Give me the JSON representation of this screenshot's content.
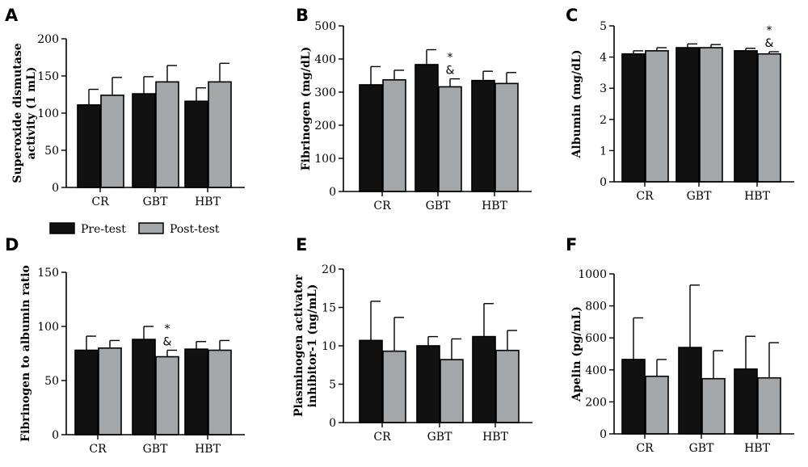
{
  "legend": {
    "entries": [
      "Pre-test",
      "Post-test"
    ]
  },
  "colors": {
    "pre": "#111111",
    "post": "#a3a7aa",
    "stroke": "#000000"
  },
  "chart_data": [
    {
      "type": "bar",
      "panel": "A",
      "title": "",
      "ylabel": "Superoxide dismutase activity (1 mL)",
      "ylabel_lines": [
        "Superoxide dismutase",
        "activity (1 mL)"
      ],
      "categories": [
        "CR",
        "GBT",
        "HBT"
      ],
      "ylim": [
        0,
        200
      ],
      "yticks": [
        0,
        50,
        100,
        150,
        200
      ],
      "series": [
        {
          "name": "Pre-test",
          "values": [
            111,
            126,
            116
          ],
          "errors": [
            21,
            23,
            18
          ]
        },
        {
          "name": "Post-test",
          "values": [
            124,
            142,
            142
          ],
          "errors": [
            24,
            22,
            25
          ]
        }
      ],
      "annotations": []
    },
    {
      "type": "bar",
      "panel": "B",
      "title": "",
      "ylabel": "Fibrinogen (mg/dL)",
      "ylabel_lines": [
        "Fibrinogen (mg/dL)"
      ],
      "categories": [
        "CR",
        "GBT",
        "HBT"
      ],
      "ylim": [
        0,
        500
      ],
      "yticks": [
        0,
        100,
        200,
        300,
        400,
        500
      ],
      "series": [
        {
          "name": "Pre-test",
          "values": [
            322,
            383,
            335
          ],
          "errors": [
            55,
            45,
            28
          ]
        },
        {
          "name": "Post-test",
          "values": [
            337,
            316,
            326
          ],
          "errors": [
            29,
            24,
            33
          ]
        }
      ],
      "annotations": [
        {
          "category": "GBT",
          "series": "Post-test",
          "lines": [
            "*",
            "&"
          ]
        }
      ]
    },
    {
      "type": "bar",
      "panel": "C",
      "title": "",
      "ylabel": "Albumin (mg/dL)",
      "ylabel_lines": [
        "Albumin (mg/dL)"
      ],
      "categories": [
        "CR",
        "GBT",
        "HBT"
      ],
      "ylim": [
        0,
        5
      ],
      "yticks": [
        0,
        1,
        2,
        3,
        4,
        5
      ],
      "series": [
        {
          "name": "Pre-test",
          "values": [
            4.1,
            4.3,
            4.2
          ],
          "errors": [
            0.1,
            0.12,
            0.08
          ]
        },
        {
          "name": "Post-test",
          "values": [
            4.2,
            4.3,
            4.1
          ],
          "errors": [
            0.1,
            0.1,
            0.07
          ]
        }
      ],
      "annotations": [
        {
          "category": "HBT",
          "series": "Post-test",
          "lines": [
            "*",
            "&"
          ]
        }
      ]
    },
    {
      "type": "bar",
      "panel": "D",
      "title": "",
      "ylabel": "Fibrinogen to albumin ratio",
      "ylabel_lines": [
        "Fibrinogen to albumin ratio"
      ],
      "categories": [
        "CR",
        "GBT",
        "HBT"
      ],
      "ylim": [
        0,
        150
      ],
      "yticks": [
        0,
        50,
        100,
        150
      ],
      "series": [
        {
          "name": "Pre-test",
          "values": [
            78,
            88,
            79
          ],
          "errors": [
            13,
            12,
            7
          ]
        },
        {
          "name": "Post-test",
          "values": [
            80,
            72,
            78
          ],
          "errors": [
            7,
            6,
            9
          ]
        }
      ],
      "annotations": [
        {
          "category": "GBT",
          "series": "Post-test",
          "lines": [
            "*",
            "&"
          ]
        }
      ]
    },
    {
      "type": "bar",
      "panel": "E",
      "title": "",
      "ylabel": "Plasminogen activator inhibitor-1 (ng/mL)",
      "ylabel_lines": [
        "Plasminogen activator",
        "inhibitor-1 (ng/mL)"
      ],
      "categories": [
        "CR",
        "GBT",
        "HBT"
      ],
      "ylim": [
        0,
        20
      ],
      "yticks": [
        0,
        5,
        10,
        15,
        20
      ],
      "series": [
        {
          "name": "Pre-test",
          "values": [
            10.7,
            10.0,
            11.2
          ],
          "errors": [
            5.1,
            1.2,
            4.3
          ]
        },
        {
          "name": "Post-test",
          "values": [
            9.3,
            8.2,
            9.4
          ],
          "errors": [
            4.4,
            2.7,
            2.6
          ]
        }
      ],
      "annotations": []
    },
    {
      "type": "bar",
      "panel": "F",
      "title": "",
      "ylabel": "Apelin (pg/mL)",
      "ylabel_lines": [
        "Apelin (pg/mL)"
      ],
      "categories": [
        "CR",
        "GBT",
        "HBT"
      ],
      "ylim": [
        0,
        1000
      ],
      "yticks": [
        0,
        200,
        400,
        600,
        800,
        1000
      ],
      "series": [
        {
          "name": "Pre-test",
          "values": [
            465,
            540,
            405
          ],
          "errors": [
            260,
            390,
            205
          ]
        },
        {
          "name": "Post-test",
          "values": [
            360,
            345,
            350
          ],
          "errors": [
            105,
            175,
            220
          ]
        }
      ],
      "annotations": []
    }
  ]
}
